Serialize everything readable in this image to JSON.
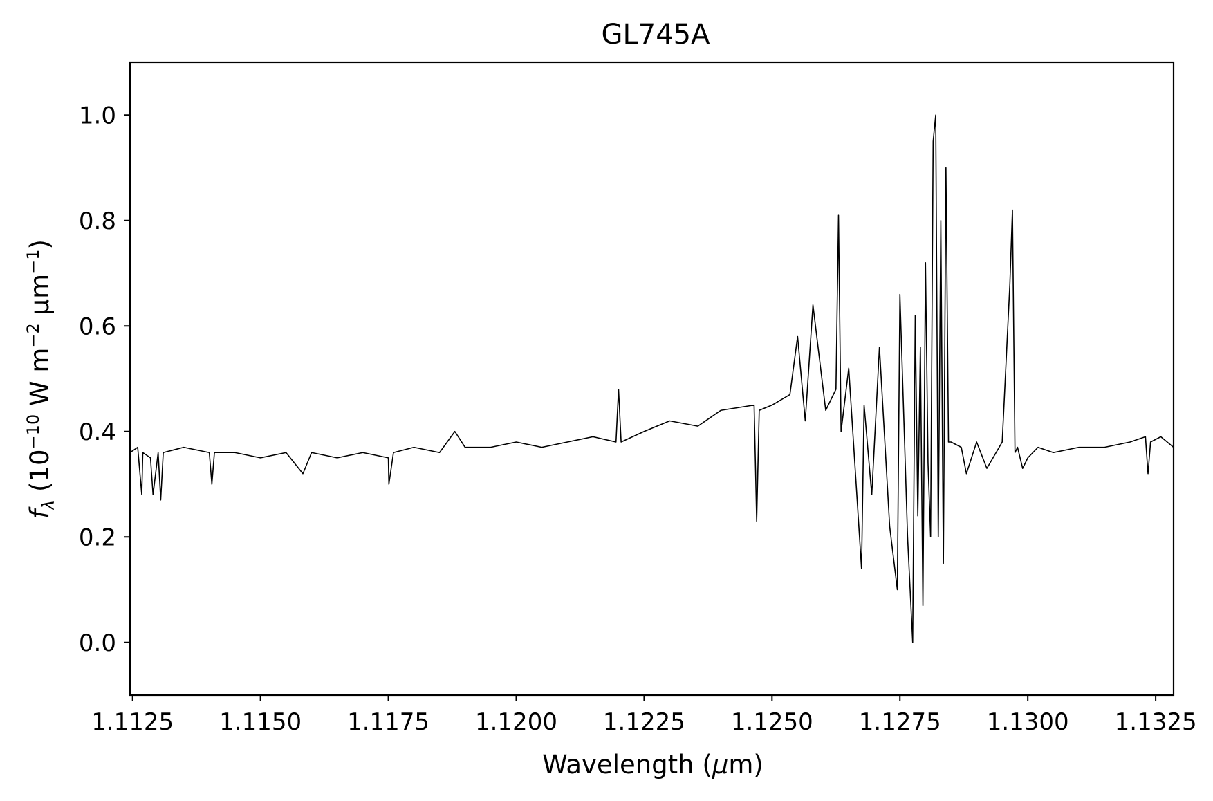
{
  "chart_data": {
    "type": "line",
    "title": "GL745A",
    "xlabel": "Wavelength (μm)",
    "ylabel": "fλ (10⁻¹⁰ W m⁻² μm⁻¹)",
    "xlim": [
      1.11245,
      1.13285
    ],
    "ylim": [
      -0.1,
      1.1
    ],
    "x_ticks": [
      1.1125,
      1.115,
      1.1175,
      1.12,
      1.1225,
      1.125,
      1.1275,
      1.13,
      1.1325
    ],
    "x_tick_labels": [
      "1.1125",
      "1.1150",
      "1.1175",
      "1.1200",
      "1.1225",
      "1.1250",
      "1.1275",
      "1.1300",
      "1.1325"
    ],
    "y_ticks": [
      0.0,
      0.2,
      0.4,
      0.6,
      0.8,
      1.0
    ],
    "y_tick_labels": [
      "0.0",
      "0.2",
      "0.4",
      "0.6",
      "0.8",
      "1.0"
    ],
    "grid": false,
    "legend": "none",
    "line_color": "#000000",
    "series": [
      {
        "x": [
          1.11245,
          1.1126,
          1.11268,
          1.1127,
          1.11285,
          1.1129,
          1.113,
          1.11305,
          1.1131,
          1.1135,
          1.114,
          1.11405,
          1.1141,
          1.1145,
          1.115,
          1.1155,
          1.11583,
          1.116,
          1.1165,
          1.117,
          1.1175,
          1.11751,
          1.1176,
          1.118,
          1.1185,
          1.1188,
          1.119,
          1.1195,
          1.12,
          1.1205,
          1.121,
          1.1215,
          1.12195,
          1.122,
          1.12205,
          1.1225,
          1.123,
          1.12355,
          1.124,
          1.12465,
          1.1247,
          1.12475,
          1.125,
          1.12535,
          1.1255,
          1.12565,
          1.1258,
          1.12605,
          1.12625,
          1.1263,
          1.12635,
          1.1265,
          1.12675,
          1.1268,
          1.12695,
          1.1271,
          1.1273,
          1.12745,
          1.1275,
          1.12765,
          1.12775,
          1.1278,
          1.12785,
          1.1279,
          1.12795,
          1.128,
          1.12805,
          1.1281,
          1.12815,
          1.1282,
          1.12825,
          1.1283,
          1.12835,
          1.1284,
          1.12845,
          1.1285,
          1.1287,
          1.1288,
          1.129,
          1.1292,
          1.1295,
          1.12965,
          1.1297,
          1.12975,
          1.1298,
          1.1299,
          1.13,
          1.1302,
          1.1305,
          1.131,
          1.1315,
          1.132,
          1.1323,
          1.13235,
          1.1324,
          1.1326,
          1.13285
        ],
        "y": [
          0.36,
          0.37,
          0.28,
          0.36,
          0.35,
          0.28,
          0.36,
          0.27,
          0.36,
          0.37,
          0.36,
          0.3,
          0.36,
          0.36,
          0.35,
          0.36,
          0.32,
          0.36,
          0.35,
          0.36,
          0.35,
          0.3,
          0.36,
          0.37,
          0.36,
          0.4,
          0.37,
          0.37,
          0.38,
          0.37,
          0.38,
          0.39,
          0.38,
          0.48,
          0.38,
          0.4,
          0.42,
          0.41,
          0.44,
          0.45,
          0.23,
          0.44,
          0.45,
          0.47,
          0.58,
          0.42,
          0.64,
          0.44,
          0.48,
          0.81,
          0.4,
          0.52,
          0.14,
          0.45,
          0.28,
          0.56,
          0.22,
          0.1,
          0.66,
          0.2,
          0.0,
          0.62,
          0.24,
          0.56,
          0.07,
          0.72,
          0.34,
          0.2,
          0.95,
          1.0,
          0.2,
          0.8,
          0.15,
          0.9,
          0.38,
          0.38,
          0.37,
          0.32,
          0.38,
          0.33,
          0.38,
          0.68,
          0.82,
          0.36,
          0.37,
          0.33,
          0.35,
          0.37,
          0.36,
          0.37,
          0.37,
          0.38,
          0.39,
          0.32,
          0.38,
          0.39,
          0.37
        ]
      }
    ]
  }
}
